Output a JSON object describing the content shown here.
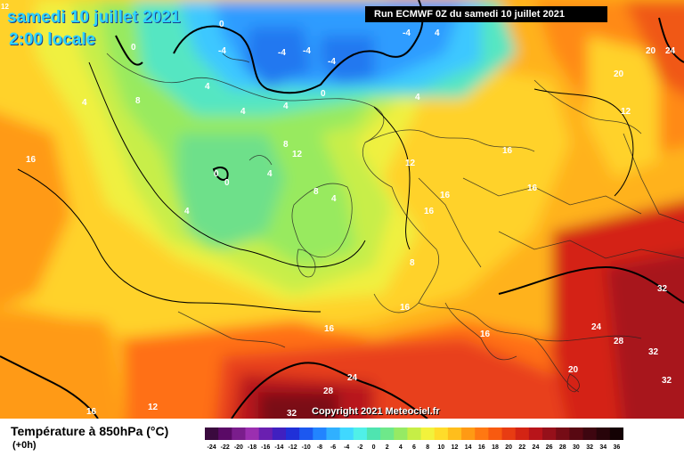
{
  "header": {
    "date_line": "samedi 10 juillet 2021",
    "time_line": "2:00 locale",
    "run_banner": "Run ECMWF 0Z du samedi 10 juillet 2021"
  },
  "copyright": "Copyright 2021 Meteociel.fr",
  "footer": {
    "parameter": "Température à 850hPa (°C)",
    "lead_time": "(+0h)"
  },
  "corner_mark": "12",
  "legend": {
    "ticks": [
      "-24",
      "-22",
      "-20",
      "-18",
      "-16",
      "-14",
      "-12",
      "-10",
      "-8",
      "-6",
      "-4",
      "-2",
      "0",
      "2",
      "4",
      "6",
      "8",
      "10",
      "12",
      "14",
      "16",
      "18",
      "20",
      "22",
      "24",
      "26",
      "28",
      "30",
      "32",
      "34",
      "36"
    ],
    "colors": [
      "#3a0a3e",
      "#5a0a66",
      "#7a1d8c",
      "#9b2fb0",
      "#6a1fb0",
      "#4020c0",
      "#2030d8",
      "#1c58f0",
      "#2284ff",
      "#30b0ff",
      "#40d8ff",
      "#50f0e8",
      "#4fe4b0",
      "#6ee88a",
      "#96ea64",
      "#c6ee46",
      "#f2f23c",
      "#ffdc2a",
      "#ffbe1c",
      "#ff9a14",
      "#ff7812",
      "#f85a10",
      "#e83c12",
      "#d42414",
      "#b8141a",
      "#96101a",
      "#760c16",
      "#580812",
      "#3e0610",
      "#28040a",
      "#140204"
    ]
  },
  "map_labels": [
    {
      "t": "0",
      "c": "w"
    },
    {
      "t": "-4",
      "c": "w"
    },
    {
      "t": "-4",
      "c": "w"
    },
    {
      "t": "-4",
      "c": "w"
    },
    {
      "t": "-4",
      "c": "w"
    },
    {
      "t": "-4",
      "c": "w"
    },
    {
      "t": "0",
      "c": "w"
    },
    {
      "t": "0",
      "c": "w"
    },
    {
      "t": "0",
      "c": "w"
    },
    {
      "t": "0",
      "c": "w"
    },
    {
      "t": "4",
      "c": "w"
    },
    {
      "t": "4",
      "c": "w"
    },
    {
      "t": "4",
      "c": "w"
    },
    {
      "t": "4",
      "c": "w"
    },
    {
      "t": "4",
      "c": "w"
    },
    {
      "t": "4",
      "c": "w"
    },
    {
      "t": "4",
      "c": "w"
    },
    {
      "t": "4",
      "c": "w"
    },
    {
      "t": "4",
      "c": "w"
    },
    {
      "t": "8",
      "c": "w"
    },
    {
      "t": "8",
      "c": "w"
    },
    {
      "t": "8",
      "c": "w"
    },
    {
      "t": "8",
      "c": "w"
    },
    {
      "t": "12",
      "c": "w"
    },
    {
      "t": "12",
      "c": "w"
    },
    {
      "t": "12",
      "c": "w"
    },
    {
      "t": "12",
      "c": "w"
    },
    {
      "t": "16",
      "c": "w"
    },
    {
      "t": "16",
      "c": "w"
    },
    {
      "t": "16",
      "c": "w"
    },
    {
      "t": "16",
      "c": "w"
    },
    {
      "t": "16",
      "c": "w"
    },
    {
      "t": "16",
      "c": "w"
    },
    {
      "t": "16",
      "c": "w"
    },
    {
      "t": "16",
      "c": "w"
    },
    {
      "t": "16",
      "c": "w"
    },
    {
      "t": "20",
      "c": "w"
    },
    {
      "t": "20",
      "c": "w"
    },
    {
      "t": "20",
      "c": "w"
    },
    {
      "t": "24",
      "c": "w"
    },
    {
      "t": "24",
      "c": "w"
    },
    {
      "t": "24",
      "c": "w"
    },
    {
      "t": "28",
      "c": "w"
    },
    {
      "t": "28",
      "c": "w"
    },
    {
      "t": "32",
      "c": "w"
    },
    {
      "t": "32",
      "c": "w"
    },
    {
      "t": "32",
      "c": "w"
    },
    {
      "t": "32",
      "c": "w"
    }
  ]
}
